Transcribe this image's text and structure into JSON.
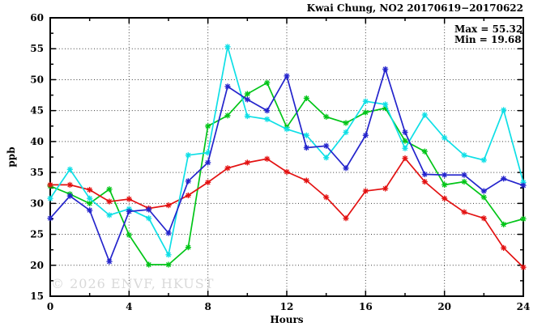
{
  "title": "Kwai Chung, NO2 20170619−20170622",
  "annotations": {
    "max_label": "Max = 55.32",
    "min_label": "Min = 19.68"
  },
  "watermark": "© 2026 ENVF, HKUST",
  "chart_data": {
    "type": "line",
    "title": "Kwai Chung, NO2 20170619-20170622",
    "xlabel": "Hours",
    "ylabel": "ppb",
    "xlim": [
      0,
      24
    ],
    "ylim": [
      15,
      60
    ],
    "xtick_major": 4,
    "xtick_minor": 2,
    "ytick_major": 5,
    "ytick_minor": 2.5,
    "grid": true,
    "legend": "none",
    "marker": "asterisk",
    "max": 55.32,
    "min": 19.68,
    "x": [
      0,
      1,
      2,
      3,
      4,
      5,
      6,
      7,
      8,
      9,
      10,
      11,
      12,
      13,
      14,
      15,
      16,
      17,
      18,
      19,
      20,
      21,
      22,
      23,
      24
    ],
    "series": [
      {
        "name": "green",
        "color": "#00c517",
        "values": [
          32.8,
          31.5,
          30.0,
          32.3,
          24.9,
          20.1,
          20.1,
          22.9,
          42.5,
          44.2,
          47.7,
          49.5,
          42.3,
          47.0,
          44.0,
          43.0,
          44.7,
          45.4,
          40.1,
          38.4,
          33.0,
          33.5,
          31.0,
          26.6,
          27.5
        ]
      },
      {
        "name": "red",
        "color": "#e31111",
        "values": [
          33.0,
          33.0,
          32.2,
          30.3,
          30.7,
          29.2,
          29.7,
          31.3,
          33.4,
          35.7,
          36.6,
          37.2,
          35.1,
          33.7,
          31.0,
          27.6,
          32.0,
          32.4,
          37.3,
          33.5,
          30.8,
          28.6,
          27.6,
          22.8,
          19.68
        ]
      },
      {
        "name": "cyan",
        "color": "#0edfe6",
        "values": [
          30.8,
          35.5,
          30.8,
          28.1,
          29.1,
          27.6,
          21.7,
          37.8,
          38.2,
          55.32,
          44.1,
          43.6,
          42.0,
          41.0,
          37.4,
          41.5,
          46.5,
          46.0,
          38.9,
          44.3,
          40.6,
          37.8,
          37.0,
          45.1,
          33.4
        ]
      },
      {
        "name": "blue",
        "color": "#2424cc",
        "values": [
          27.6,
          31.2,
          28.9,
          20.6,
          28.7,
          29.0,
          25.2,
          33.6,
          36.6,
          48.9,
          46.8,
          45.0,
          50.6,
          39.0,
          39.3,
          35.7,
          41.0,
          51.7,
          41.5,
          34.7,
          34.6,
          34.6,
          32.0,
          34.0,
          32.9
        ]
      }
    ]
  }
}
